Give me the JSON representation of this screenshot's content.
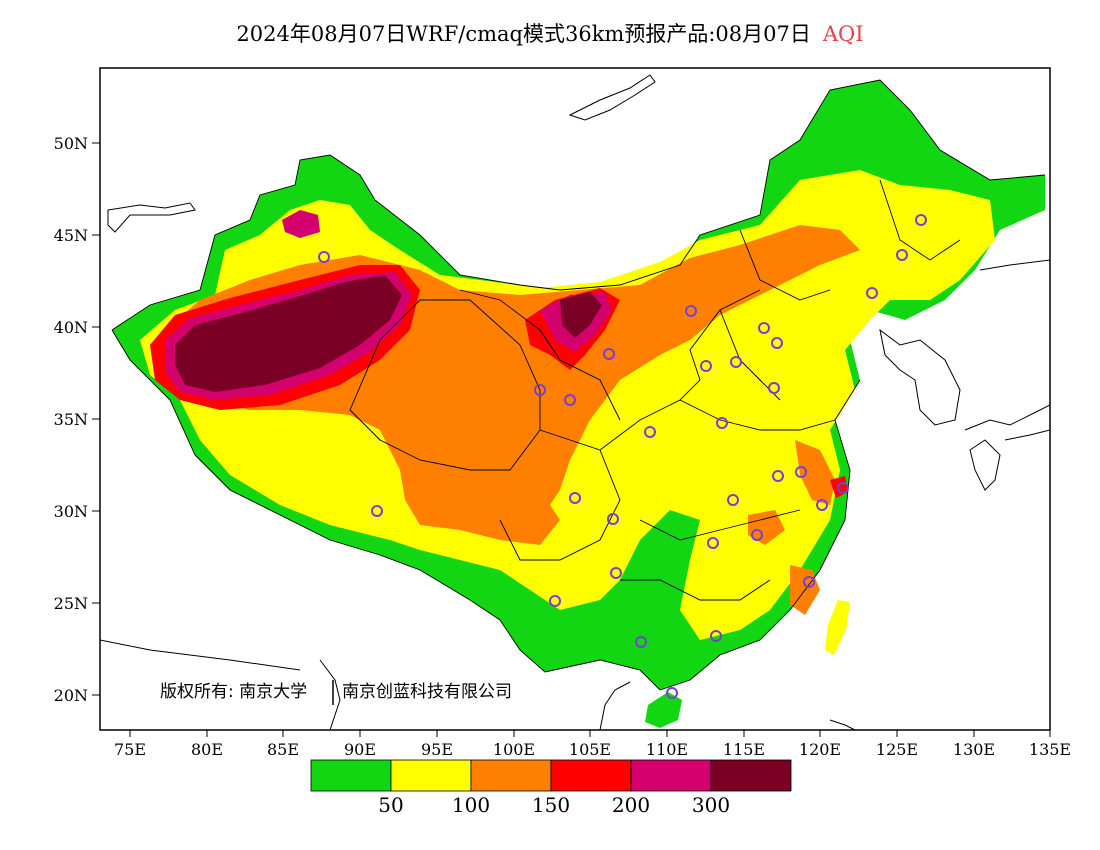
{
  "title": {
    "text": "2024年08月07日WRF/cmaq模式36km预报产品:08月07日",
    "variable": "AQI",
    "variable_color": "#e8404a"
  },
  "map": {
    "lat_labels": [
      "50N",
      "45N",
      "40N",
      "35N",
      "30N",
      "25N",
      "20N"
    ],
    "lon_labels": [
      "75E",
      "80E",
      "85E",
      "90E",
      "95E",
      "100E",
      "105E",
      "110E",
      "115E",
      "120E",
      "125E",
      "130E",
      "135E"
    ],
    "copyright": "版权所有: 南京大学",
    "copyright2": "南京创蓝科技有限公司",
    "station_color": "#7a3fd0"
  },
  "legend": {
    "colors": [
      "#11d611",
      "#ffff00",
      "#ff8000",
      "#ff0000",
      "#d4006e",
      "#7a0025"
    ],
    "labels": [
      "50",
      "100",
      "150",
      "200",
      "300"
    ]
  }
}
